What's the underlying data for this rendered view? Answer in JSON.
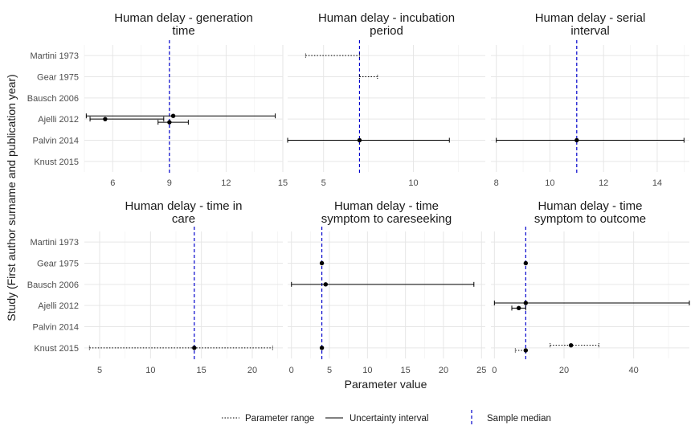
{
  "chart_data": {
    "type": "forest",
    "xlabel": "Parameter value",
    "ylabel": "Study (First author surname and publication year)",
    "studies": [
      "Martini 1973",
      "Gear 1975",
      "Bausch 2006",
      "Ajelli 2012",
      "Palvin 2014",
      "Knust 2015"
    ],
    "legend": {
      "range": "Parameter range",
      "uncertainty": "Uncertainty interval",
      "median": "Sample median"
    },
    "panels": [
      {
        "title_lines": [
          "Human delay - generation",
          "time"
        ],
        "xlim": [
          4.5,
          15
        ],
        "xticks": [
          6,
          9,
          12,
          15
        ],
        "median": 9,
        "entries": [
          {
            "study": "Ajelli 2012",
            "offset": 0.15,
            "point": 9.2,
            "range": null,
            "uncertainty": [
              4.6,
              14.6
            ]
          },
          {
            "study": "Ajelli 2012",
            "offset": 0.0,
            "point": 5.6,
            "range": null,
            "uncertainty": [
              4.8,
              8.7
            ]
          },
          {
            "study": "Ajelli 2012",
            "offset": -0.15,
            "point": 9.0,
            "range": null,
            "uncertainty": [
              8.4,
              10.0
            ]
          }
        ]
      },
      {
        "title_lines": [
          "Human delay - incubation",
          "period"
        ],
        "xlim": [
          3,
          14
        ],
        "xticks": [
          5,
          10
        ],
        "median": 7,
        "entries": [
          {
            "study": "Martini 1973",
            "offset": 0,
            "point": null,
            "range": [
              4,
              7
            ],
            "uncertainty": null
          },
          {
            "study": "Gear 1975",
            "offset": 0,
            "point": null,
            "range": [
              7,
              8
            ],
            "uncertainty": null
          },
          {
            "study": "Palvin 2014",
            "offset": 0,
            "point": 7,
            "range": null,
            "uncertainty": [
              3,
              12
            ]
          }
        ]
      },
      {
        "title_lines": [
          "Human delay - serial",
          "interval"
        ],
        "xlim": [
          7.8,
          15.2
        ],
        "xticks": [
          8,
          10,
          12,
          14
        ],
        "median": 11,
        "entries": [
          {
            "study": "Palvin 2014",
            "offset": 0,
            "point": 11,
            "range": null,
            "uncertainty": [
              8,
              15
            ]
          }
        ]
      },
      {
        "title_lines": [
          "Human delay - time in",
          "care"
        ],
        "xlim": [
          3.5,
          23
        ],
        "xticks": [
          5,
          10,
          15,
          20
        ],
        "median": 14.3,
        "entries": [
          {
            "study": "Knust 2015",
            "offset": 0,
            "point": 14.3,
            "range": [
              4,
              22
            ],
            "uncertainty": null
          }
        ]
      },
      {
        "title_lines": [
          "Human delay - time",
          "symptom to careseeking"
        ],
        "xlim": [
          -0.5,
          25.5
        ],
        "xticks": [
          0,
          5,
          10,
          15,
          20,
          25
        ],
        "median": 4,
        "entries": [
          {
            "study": "Gear 1975",
            "offset": 0,
            "point": 4,
            "range": null,
            "uncertainty": null
          },
          {
            "study": "Bausch 2006",
            "offset": 0,
            "point": 4.5,
            "range": null,
            "uncertainty": [
              0,
              24
            ]
          },
          {
            "study": "Knust 2015",
            "offset": 0,
            "point": 4,
            "range": null,
            "uncertainty": null
          }
        ]
      },
      {
        "title_lines": [
          "Human delay - time",
          "symptom to outcome"
        ],
        "xlim": [
          -1,
          56
        ],
        "xticks": [
          0,
          20,
          40
        ],
        "median": 9,
        "entries": [
          {
            "study": "Gear 1975",
            "offset": 0,
            "point": 9,
            "range": null,
            "uncertainty": null
          },
          {
            "study": "Ajelli 2012",
            "offset": 0.12,
            "point": 9,
            "range": null,
            "uncertainty": [
              0,
              56
            ]
          },
          {
            "study": "Ajelli 2012",
            "offset": -0.12,
            "point": 7,
            "range": null,
            "uncertainty": [
              5,
              9
            ]
          },
          {
            "study": "Knust 2015",
            "offset": 0.12,
            "point": 22,
            "range": [
              16,
              30
            ],
            "uncertainty": null
          },
          {
            "study": "Knust 2015",
            "offset": -0.12,
            "point": 9,
            "range": [
              6,
              9
            ],
            "uncertainty": null
          }
        ]
      }
    ]
  }
}
